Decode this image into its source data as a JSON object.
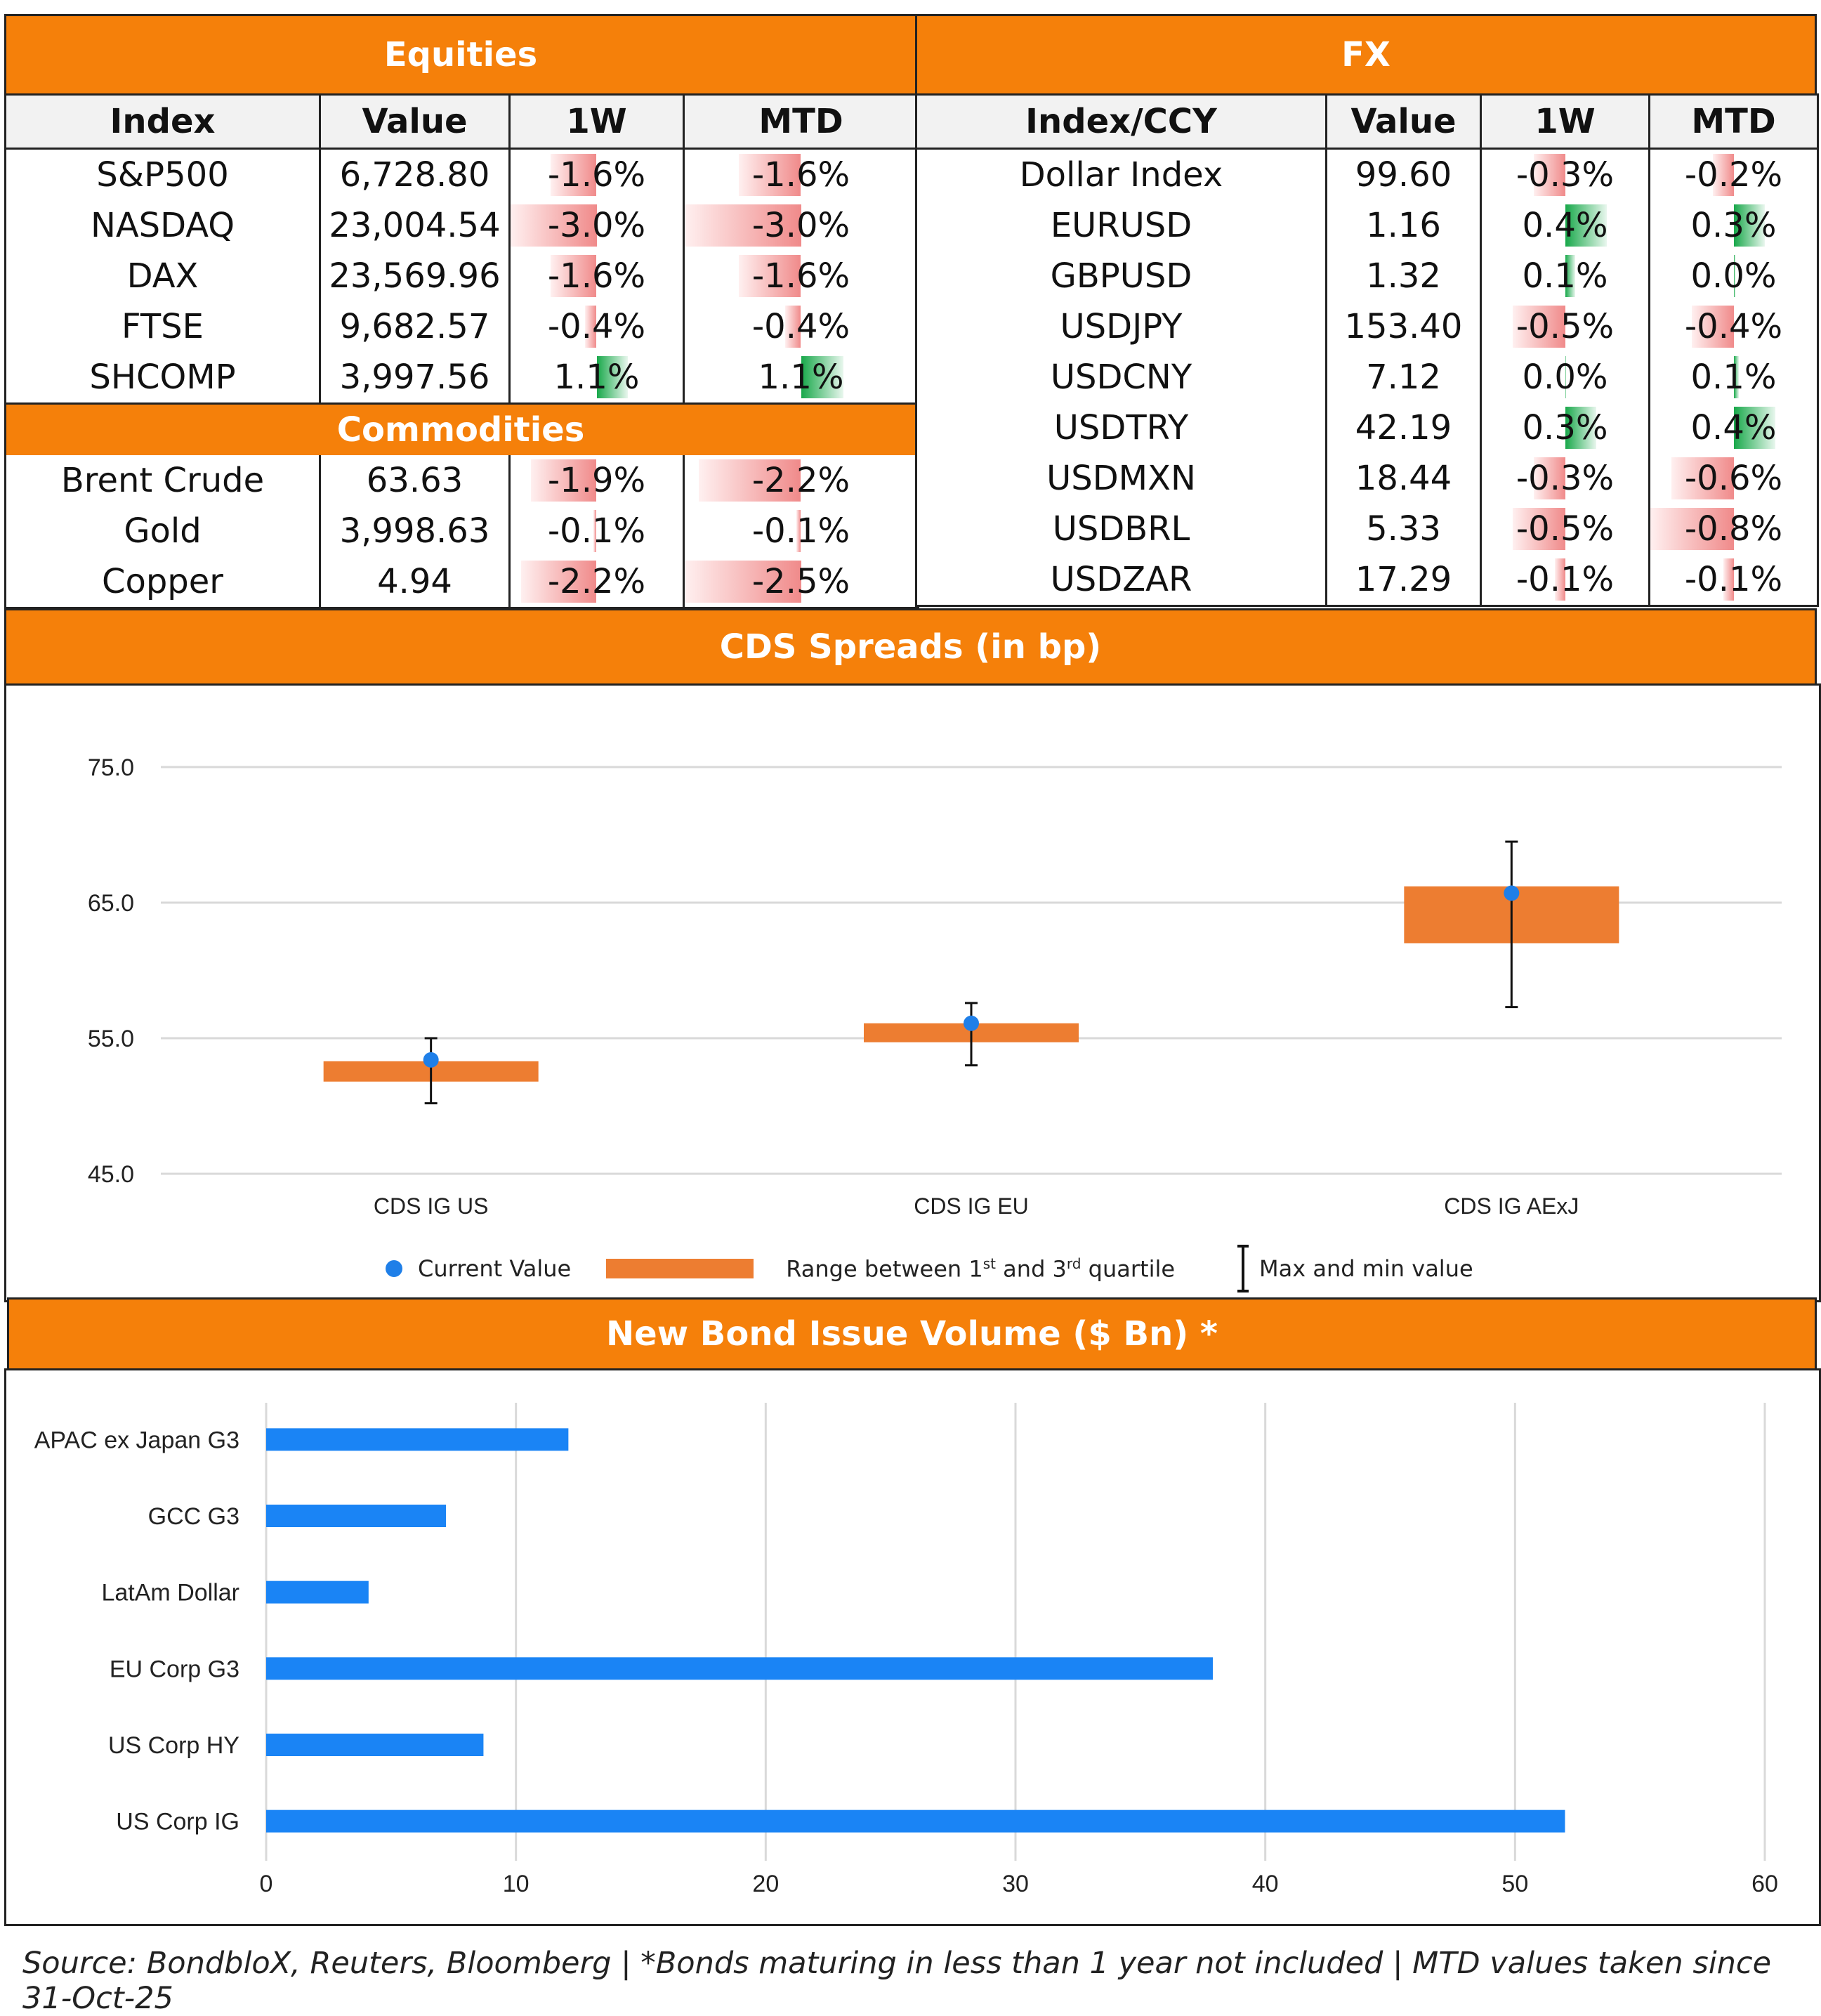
{
  "equities": {
    "title": "Equities",
    "headers": [
      "Index",
      "Value",
      "1W",
      "MTD"
    ],
    "rows": [
      {
        "name": "S&P500",
        "value": "6,728.80",
        "w1": "-1.6%",
        "mtd": "-1.6%",
        "w1_num": -1.6,
        "mtd_num": -1.6
      },
      {
        "name": "NASDAQ",
        "value": "23,004.54",
        "w1": "-3.0%",
        "mtd": "-3.0%",
        "w1_num": -3.0,
        "mtd_num": -3.0
      },
      {
        "name": "DAX",
        "value": "23,569.96",
        "w1": "-1.6%",
        "mtd": "-1.6%",
        "w1_num": -1.6,
        "mtd_num": -1.6
      },
      {
        "name": "FTSE",
        "value": "9,682.57",
        "w1": "-0.4%",
        "mtd": "-0.4%",
        "w1_num": -0.4,
        "mtd_num": -0.4
      },
      {
        "name": "SHCOMP",
        "value": "3,997.56",
        "w1": "1.1%",
        "mtd": "1.1%",
        "w1_num": 1.1,
        "mtd_num": 1.1
      }
    ]
  },
  "commodities": {
    "title": "Commodities",
    "rows": [
      {
        "name": "Brent Crude",
        "value": "63.63",
        "w1": "-1.9%",
        "mtd": "-2.2%",
        "w1_num": -1.9,
        "mtd_num": -2.2
      },
      {
        "name": "Gold",
        "value": "3,998.63",
        "w1": "-0.1%",
        "mtd": "-0.1%",
        "w1_num": -0.1,
        "mtd_num": -0.1
      },
      {
        "name": "Copper",
        "value": "4.94",
        "w1": "-2.2%",
        "mtd": "-2.5%",
        "w1_num": -2.2,
        "mtd_num": -2.5
      }
    ]
  },
  "fx": {
    "title": "FX",
    "headers": [
      "Index/CCY",
      "Value",
      "1W",
      "MTD"
    ],
    "rows": [
      {
        "name": "Dollar Index",
        "value": "99.60",
        "w1": "-0.3%",
        "mtd": "-0.2%",
        "w1_num": -0.3,
        "mtd_num": -0.2
      },
      {
        "name": "EURUSD",
        "value": "1.16",
        "w1": "0.4%",
        "mtd": "0.3%",
        "w1_num": 0.4,
        "mtd_num": 0.3
      },
      {
        "name": "GBPUSD",
        "value": "1.32",
        "w1": "0.1%",
        "mtd": "0.0%",
        "w1_num": 0.1,
        "mtd_num": 0.02
      },
      {
        "name": "USDJPY",
        "value": "153.40",
        "w1": "-0.5%",
        "mtd": "-0.4%",
        "w1_num": -0.5,
        "mtd_num": -0.4
      },
      {
        "name": "USDCNY",
        "value": "7.12",
        "w1": "0.0%",
        "mtd": "0.1%",
        "w1_num": 0.01,
        "mtd_num": 0.05
      },
      {
        "name": "USDTRY",
        "value": "42.19",
        "w1": "0.3%",
        "mtd": "0.4%",
        "w1_num": 0.3,
        "mtd_num": 0.4
      },
      {
        "name": "USDMXN",
        "value": "18.44",
        "w1": "-0.3%",
        "mtd": "-0.6%",
        "w1_num": -0.3,
        "mtd_num": -0.6
      },
      {
        "name": "USDBRL",
        "value": "5.33",
        "w1": "-0.5%",
        "mtd": "-0.8%",
        "w1_num": -0.5,
        "mtd_num": -0.8
      },
      {
        "name": "USDZAR",
        "value": "17.29",
        "w1": "-0.1%",
        "mtd": "-0.1%",
        "w1_num": -0.1,
        "mtd_num": -0.1
      }
    ]
  },
  "cds": {
    "title": "CDS Spreads (in bp)",
    "legend": {
      "current": "Current Value",
      "range_pre": "Range between 1",
      "range_sup1": "st",
      "range_mid": " and 3",
      "range_sup2": "rd",
      "range_post": " quartile",
      "maxmin": "Max and min value"
    }
  },
  "bonds": {
    "title": "New Bond Issue Volume ($ Bn) *"
  },
  "footer": "Source: BondbloX, Reuters, Bloomberg | *Bonds maturing in less than 1 year not included | MTD values taken since 31-Oct-25",
  "colors": {
    "header_orange": "#f5800a",
    "box_orange": "#ed7d31",
    "dot_blue": "#1f7fe8",
    "bar_blue": "#1a84f5",
    "neg_red": "#f08a8a",
    "pos_green": "#18a84a"
  },
  "chart_data": [
    {
      "type": "box",
      "title": "CDS Spreads (in bp)",
      "categories": [
        "CDS IG US",
        "CDS IG EU",
        "CDS IG AExJ"
      ],
      "ylim": [
        45,
        75
      ],
      "yticks": [
        "45.0",
        "55.0",
        "65.0",
        "75.0"
      ],
      "ytick_values": [
        45,
        55,
        65,
        75
      ],
      "q1": [
        51.8,
        54.7,
        62.0
      ],
      "q3": [
        53.3,
        56.1,
        66.2
      ],
      "current": [
        53.4,
        56.1,
        65.7
      ],
      "min": [
        50.2,
        53.0,
        57.3
      ],
      "max": [
        55.0,
        57.6,
        69.5
      ],
      "legend": [
        "Current Value",
        "Range between 1st and 3rd quartile",
        "Max and min value"
      ]
    },
    {
      "type": "bar",
      "orientation": "horizontal",
      "title": "New Bond Issue Volume ($ Bn) *",
      "categories": [
        "APAC ex Japan G3",
        "GCC G3",
        "LatAm Dollar",
        "EU Corp G3",
        "US Corp HY",
        "US Corp IG"
      ],
      "values": [
        12.1,
        7.2,
        4.1,
        37.9,
        8.7,
        52.0
      ],
      "xlim": [
        0,
        60
      ],
      "xticks": [
        "0",
        "10",
        "20",
        "30",
        "40",
        "50",
        "60"
      ],
      "xtick_values": [
        0,
        10,
        20,
        30,
        40,
        50,
        60
      ]
    }
  ]
}
